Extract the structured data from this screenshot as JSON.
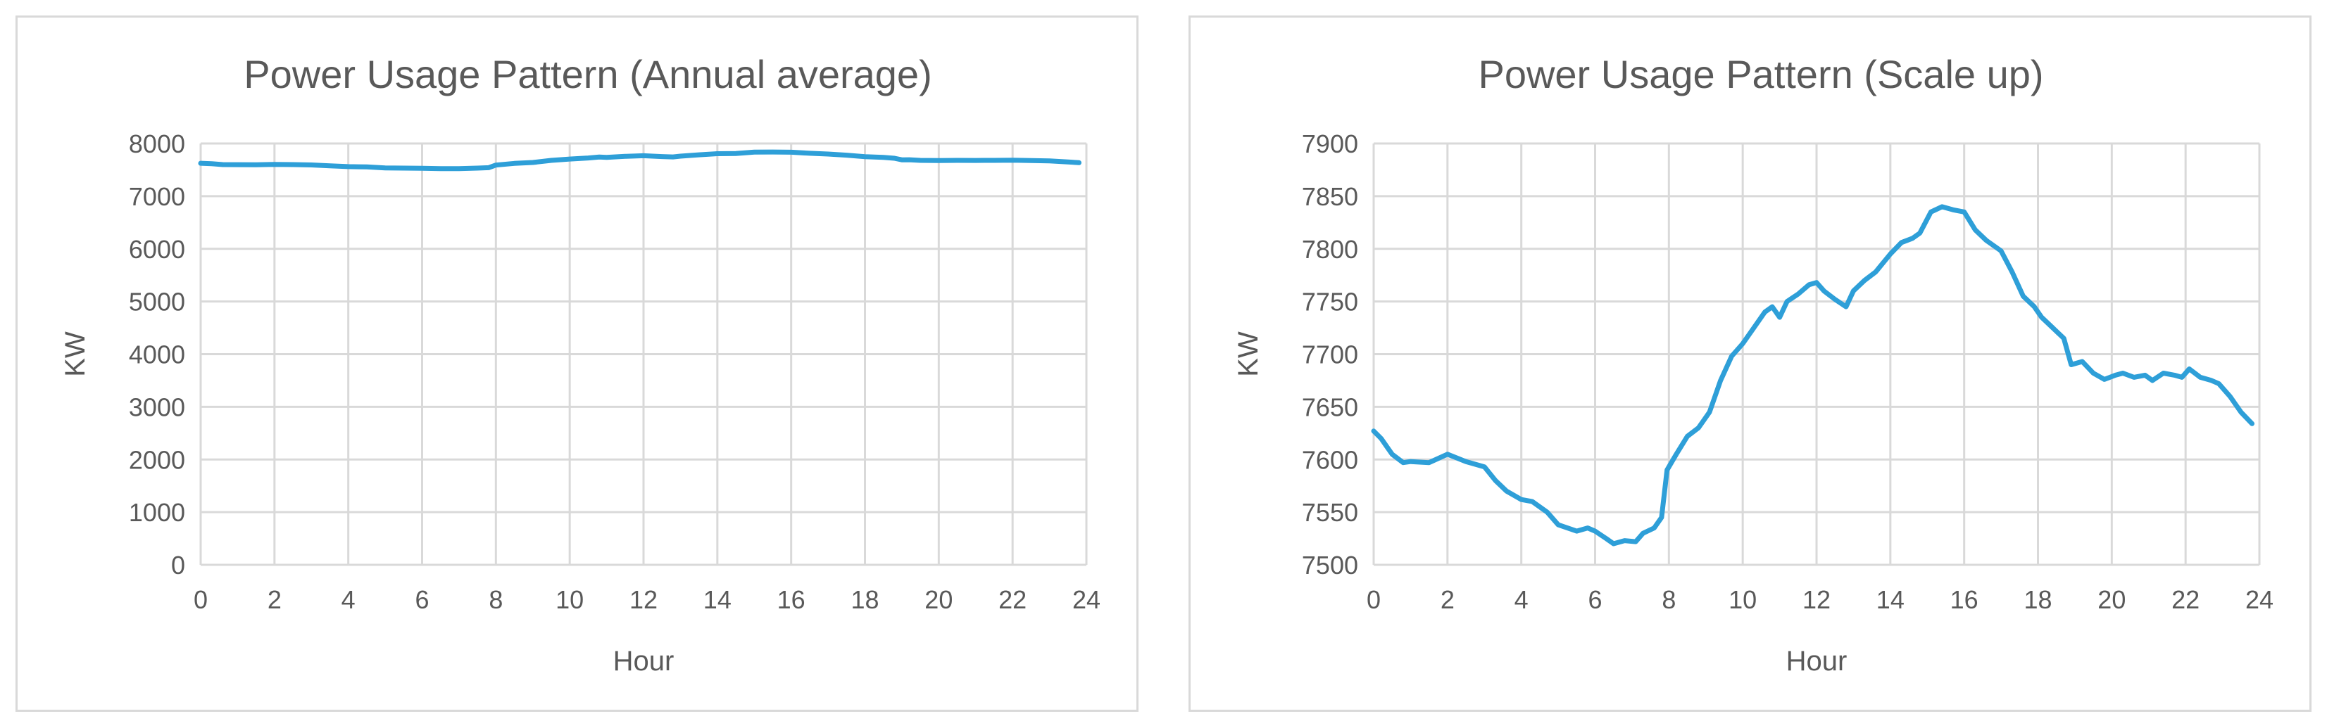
{
  "chart_data": [
    {
      "type": "line",
      "title": "Power Usage Pattern (Annual average)",
      "xlabel": "Hour",
      "ylabel": "KW",
      "xlim": [
        0,
        24
      ],
      "ylim": [
        0,
        8000
      ],
      "x_ticks": [
        0,
        2,
        4,
        6,
        8,
        10,
        12,
        14,
        16,
        18,
        20,
        22,
        24
      ],
      "y_ticks": [
        0,
        1000,
        2000,
        3000,
        4000,
        5000,
        6000,
        7000,
        8000
      ],
      "grid": true,
      "line_color": "#2E9FD8",
      "series": [
        {
          "x": [
            0,
            0.3,
            0.6,
            1,
            1.5,
            2,
            2.5,
            3,
            3.5,
            4,
            4.5,
            5,
            5.5,
            6,
            6.5,
            7,
            7.5,
            7.8,
            8,
            8.5,
            9,
            9.5,
            10,
            10.5,
            10.8,
            11,
            11.5,
            12,
            12.5,
            12.8,
            13,
            13.5,
            14,
            14.5,
            15,
            15.5,
            16,
            16.5,
            17,
            17.5,
            18,
            18.5,
            18.8,
            19,
            19.2,
            19.5,
            20,
            20.5,
            21,
            21.5,
            22,
            22.5,
            23,
            23.5,
            23.8
          ],
          "y": [
            7625,
            7615,
            7600,
            7598,
            7597,
            7603,
            7600,
            7593,
            7575,
            7560,
            7555,
            7535,
            7532,
            7530,
            7522,
            7522,
            7532,
            7540,
            7590,
            7622,
            7640,
            7680,
            7705,
            7725,
            7742,
            7737,
            7756,
            7768,
            7752,
            7745,
            7760,
            7785,
            7807,
            7810,
            7836,
            7838,
            7835,
            7815,
            7800,
            7778,
            7750,
            7735,
            7720,
            7690,
            7692,
            7680,
            7676,
            7680,
            7678,
            7680,
            7683,
            7677,
            7670,
            7650,
            7635
          ]
        }
      ]
    },
    {
      "type": "line",
      "title": "Power Usage Pattern (Scale up)",
      "xlabel": "Hour",
      "ylabel": "KW",
      "xlim": [
        0,
        24
      ],
      "ylim": [
        7500,
        7900
      ],
      "x_ticks": [
        0,
        2,
        4,
        6,
        8,
        10,
        12,
        14,
        16,
        18,
        20,
        22,
        24
      ],
      "y_ticks": [
        7500,
        7550,
        7600,
        7650,
        7700,
        7750,
        7800,
        7850,
        7900
      ],
      "grid": true,
      "line_color": "#2E9FD8",
      "series": [
        {
          "x": [
            0,
            0.2,
            0.5,
            0.8,
            1,
            1.5,
            2,
            2.5,
            3,
            3.3,
            3.6,
            4,
            4.3,
            4.7,
            5,
            5.5,
            5.8,
            6,
            6.3,
            6.5,
            6.8,
            7.1,
            7.3,
            7.6,
            7.8,
            7.95,
            8.2,
            8.5,
            8.8,
            9.1,
            9.4,
            9.7,
            10,
            10.3,
            10.6,
            10.8,
            11,
            11.2,
            11.5,
            11.8,
            12,
            12.2,
            12.5,
            12.8,
            13,
            13.3,
            13.6,
            14,
            14.3,
            14.6,
            14.8,
            15.1,
            15.4,
            15.7,
            16,
            16.3,
            16.6,
            17,
            17.3,
            17.6,
            17.9,
            18.1,
            18.4,
            18.7,
            18.9,
            19.2,
            19.5,
            19.8,
            20.1,
            20.3,
            20.6,
            20.9,
            21.1,
            21.4,
            21.7,
            21.9,
            22.1,
            22.4,
            22.7,
            22.9,
            23.2,
            23.5,
            23.8
          ],
          "y": [
            7627,
            7620,
            7605,
            7597,
            7598,
            7597,
            7605,
            7598,
            7593,
            7580,
            7570,
            7562,
            7560,
            7550,
            7538,
            7532,
            7535,
            7532,
            7525,
            7520,
            7523,
            7522,
            7530,
            7535,
            7545,
            7590,
            7605,
            7622,
            7630,
            7645,
            7675,
            7698,
            7710,
            7725,
            7740,
            7745,
            7735,
            7750,
            7757,
            7766,
            7768,
            7760,
            7752,
            7745,
            7760,
            7770,
            7778,
            7795,
            7806,
            7810,
            7815,
            7835,
            7840,
            7837,
            7835,
            7818,
            7808,
            7798,
            7778,
            7755,
            7745,
            7735,
            7725,
            7715,
            7690,
            7693,
            7682,
            7676,
            7680,
            7682,
            7678,
            7680,
            7675,
            7682,
            7680,
            7678,
            7686,
            7678,
            7675,
            7672,
            7660,
            7645,
            7634
          ]
        }
      ]
    }
  ]
}
